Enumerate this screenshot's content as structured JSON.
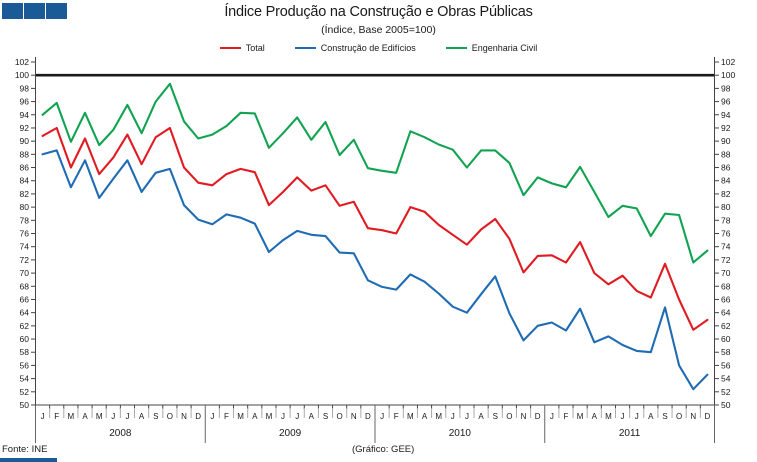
{
  "header": {
    "title": "Índice Produção na Construção e Obras Públicas",
    "subtitle": "(Índice, Base 2005=100)"
  },
  "footer": {
    "source": "Fonte: INE",
    "credit": "(Gráfico: GEE)"
  },
  "decor": {
    "square_color": "#1A5A96",
    "squares_count": 3
  },
  "chart_data": {
    "type": "line",
    "title": "Índice Produção na Construção e Obras Públicas",
    "subtitle": "(Índice, Base 2005=100)",
    "ylim": [
      50,
      102
    ],
    "ytick_step": 2,
    "baseline_value": 100,
    "baseline_color": "#1a1a1a",
    "grid": "off",
    "legend_position": "top",
    "axis_color": "#444444",
    "month_letters": [
      "J",
      "F",
      "M",
      "A",
      "M",
      "J",
      "J",
      "A",
      "S",
      "O",
      "N",
      "D"
    ],
    "years": [
      "2008",
      "2009",
      "2010",
      "2011"
    ],
    "series": [
      {
        "name": "Total",
        "color": "#E01B22",
        "values": [
          90.8,
          92.0,
          86.0,
          90.4,
          85.0,
          87.5,
          91.0,
          86.5,
          90.6,
          92.0,
          86.0,
          83.7,
          83.3,
          85.0,
          85.8,
          85.3,
          80.3,
          82.3,
          84.5,
          82.5,
          83.3,
          80.2,
          80.8,
          76.8,
          76.5,
          76.0,
          80.0,
          79.3,
          77.3,
          75.8,
          74.3,
          76.6,
          78.2,
          75.2,
          70.1,
          72.6,
          72.7,
          71.6,
          74.7,
          70.0,
          68.3,
          69.6,
          67.3,
          66.3,
          71.4,
          66.0,
          61.4,
          62.9
        ]
      },
      {
        "name": "Construção de Edifícios",
        "color": "#1F6CB4",
        "values": [
          88.0,
          88.6,
          83.0,
          87.1,
          81.4,
          84.3,
          87.1,
          82.3,
          85.2,
          85.8,
          80.3,
          78.1,
          77.4,
          78.9,
          78.4,
          77.5,
          73.2,
          75.0,
          76.4,
          75.8,
          75.6,
          73.1,
          73.0,
          68.9,
          67.9,
          67.5,
          69.8,
          68.7,
          66.9,
          64.9,
          64.0,
          66.8,
          69.5,
          63.9,
          59.8,
          62.0,
          62.5,
          61.3,
          64.6,
          59.5,
          60.4,
          59.1,
          58.2,
          58.0,
          64.8,
          56.0,
          52.4,
          54.6
        ]
      },
      {
        "name": "Engenharia Civil",
        "color": "#12A352",
        "values": [
          94.0,
          95.8,
          89.9,
          94.3,
          89.4,
          91.7,
          95.5,
          91.2,
          96.0,
          98.7,
          93.0,
          90.4,
          91.0,
          92.3,
          94.3,
          94.2,
          89.0,
          91.2,
          93.6,
          90.2,
          92.9,
          87.9,
          90.2,
          85.9,
          85.5,
          85.2,
          91.5,
          90.6,
          89.5,
          88.7,
          86.0,
          88.6,
          88.6,
          86.7,
          81.8,
          84.5,
          83.6,
          83.0,
          86.1,
          82.3,
          78.5,
          80.2,
          79.8,
          75.6,
          79.0,
          78.8,
          71.6,
          73.4
        ]
      }
    ]
  }
}
